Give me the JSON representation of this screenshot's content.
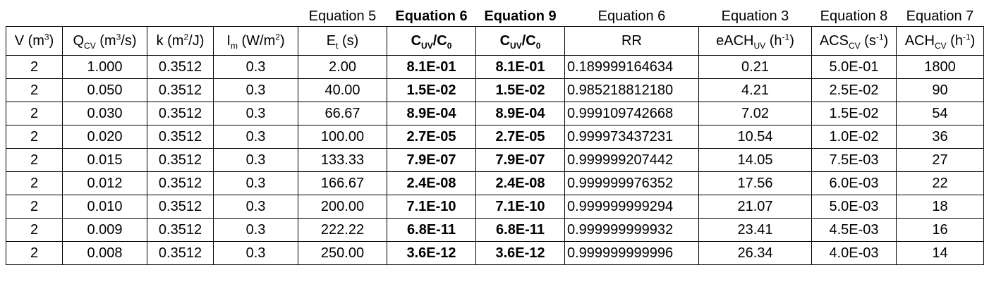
{
  "equation_row": [
    "",
    "",
    "",
    "",
    "Equation 5",
    "Equation 6",
    "Equation 9",
    "Equation 6",
    "Equation 3",
    "Equation 8",
    "Equation 7"
  ],
  "headers": [
    {
      "base": "V (m",
      "sup": "3",
      "tail": ")"
    },
    {
      "base": "Q",
      "sub": "CV",
      "mid": " (m",
      "sup": "3",
      "tail": "/s)"
    },
    {
      "base": "k (m",
      "sup": "2",
      "tail": "/J)"
    },
    {
      "base": "I",
      "sub": "m",
      "mid": " (W/m",
      "sup": "2",
      "tail": ")"
    },
    {
      "base": "E",
      "sub": "t",
      "tail": " (s)"
    },
    {
      "base": "C",
      "sub": "UV",
      "mid": "/C",
      "sub2": "0",
      "tail": ""
    },
    {
      "base": "C",
      "sub": "UV",
      "mid": "/C",
      "sub2": "0",
      "tail": ""
    },
    {
      "base": "RR",
      "tail": ""
    },
    {
      "base": "eACH",
      "sub": "UV",
      "mid": " (h",
      "sup": "-1",
      "tail": ")"
    },
    {
      "base": "ACS",
      "sub": "CV",
      "mid": " (s",
      "sup": "-1",
      "tail": ")"
    },
    {
      "base": "ACH",
      "sub": "CV",
      "mid": " (h",
      "sup": "-1",
      "tail": ")"
    }
  ],
  "rows": [
    [
      "2",
      "1.000",
      "0.3512",
      "0.3",
      "2.00",
      "8.1E-01",
      "8.1E-01",
      "0.189999164634",
      "0.21",
      "5.0E-01",
      "1800"
    ],
    [
      "2",
      "0.050",
      "0.3512",
      "0.3",
      "40.00",
      "1.5E-02",
      "1.5E-02",
      "0.985218812180",
      "4.21",
      "2.5E-02",
      "90"
    ],
    [
      "2",
      "0.030",
      "0.3512",
      "0.3",
      "66.67",
      "8.9E-04",
      "8.9E-04",
      "0.999109742668",
      "7.02",
      "1.5E-02",
      "54"
    ],
    [
      "2",
      "0.020",
      "0.3512",
      "0.3",
      "100.00",
      "2.7E-05",
      "2.7E-05",
      "0.999973437231",
      "10.54",
      "1.0E-02",
      "36"
    ],
    [
      "2",
      "0.015",
      "0.3512",
      "0.3",
      "133.33",
      "7.9E-07",
      "7.9E-07",
      "0.999999207442",
      "14.05",
      "7.5E-03",
      "27"
    ],
    [
      "2",
      "0.012",
      "0.3512",
      "0.3",
      "166.67",
      "2.4E-08",
      "2.4E-08",
      "0.999999976352",
      "17.56",
      "6.0E-03",
      "22"
    ],
    [
      "2",
      "0.010",
      "0.3512",
      "0.3",
      "200.00",
      "7.1E-10",
      "7.1E-10",
      "0.999999999294",
      "21.07",
      "5.0E-03",
      "18"
    ],
    [
      "2",
      "0.009",
      "0.3512",
      "0.3",
      "222.22",
      "6.8E-11",
      "6.8E-11",
      "0.999999999932",
      "23.41",
      "4.5E-03",
      "16"
    ],
    [
      "2",
      "0.008",
      "0.3512",
      "0.3",
      "250.00",
      "3.6E-12",
      "3.6E-12",
      "0.999999999996",
      "26.34",
      "4.0E-03",
      "14"
    ]
  ]
}
